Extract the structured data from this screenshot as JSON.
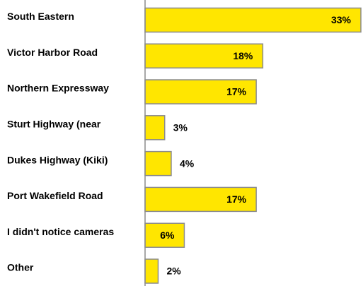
{
  "chart_data": {
    "type": "bar",
    "orientation": "horizontal",
    "categories": [
      "South Eastern",
      "Victor Harbor Road",
      "Northern Expressway",
      "Sturt Highway (near",
      "Dukes Highway (Kiki)",
      "Port Wakefield Road",
      "I didn't notice cameras",
      "Other"
    ],
    "values": [
      33,
      18,
      17,
      3,
      4,
      17,
      6,
      2
    ],
    "value_labels": [
      "33%",
      "18%",
      "17%",
      "3%",
      "4%",
      "17%",
      "6%",
      "2%"
    ],
    "color": "#ffe600"
  }
}
